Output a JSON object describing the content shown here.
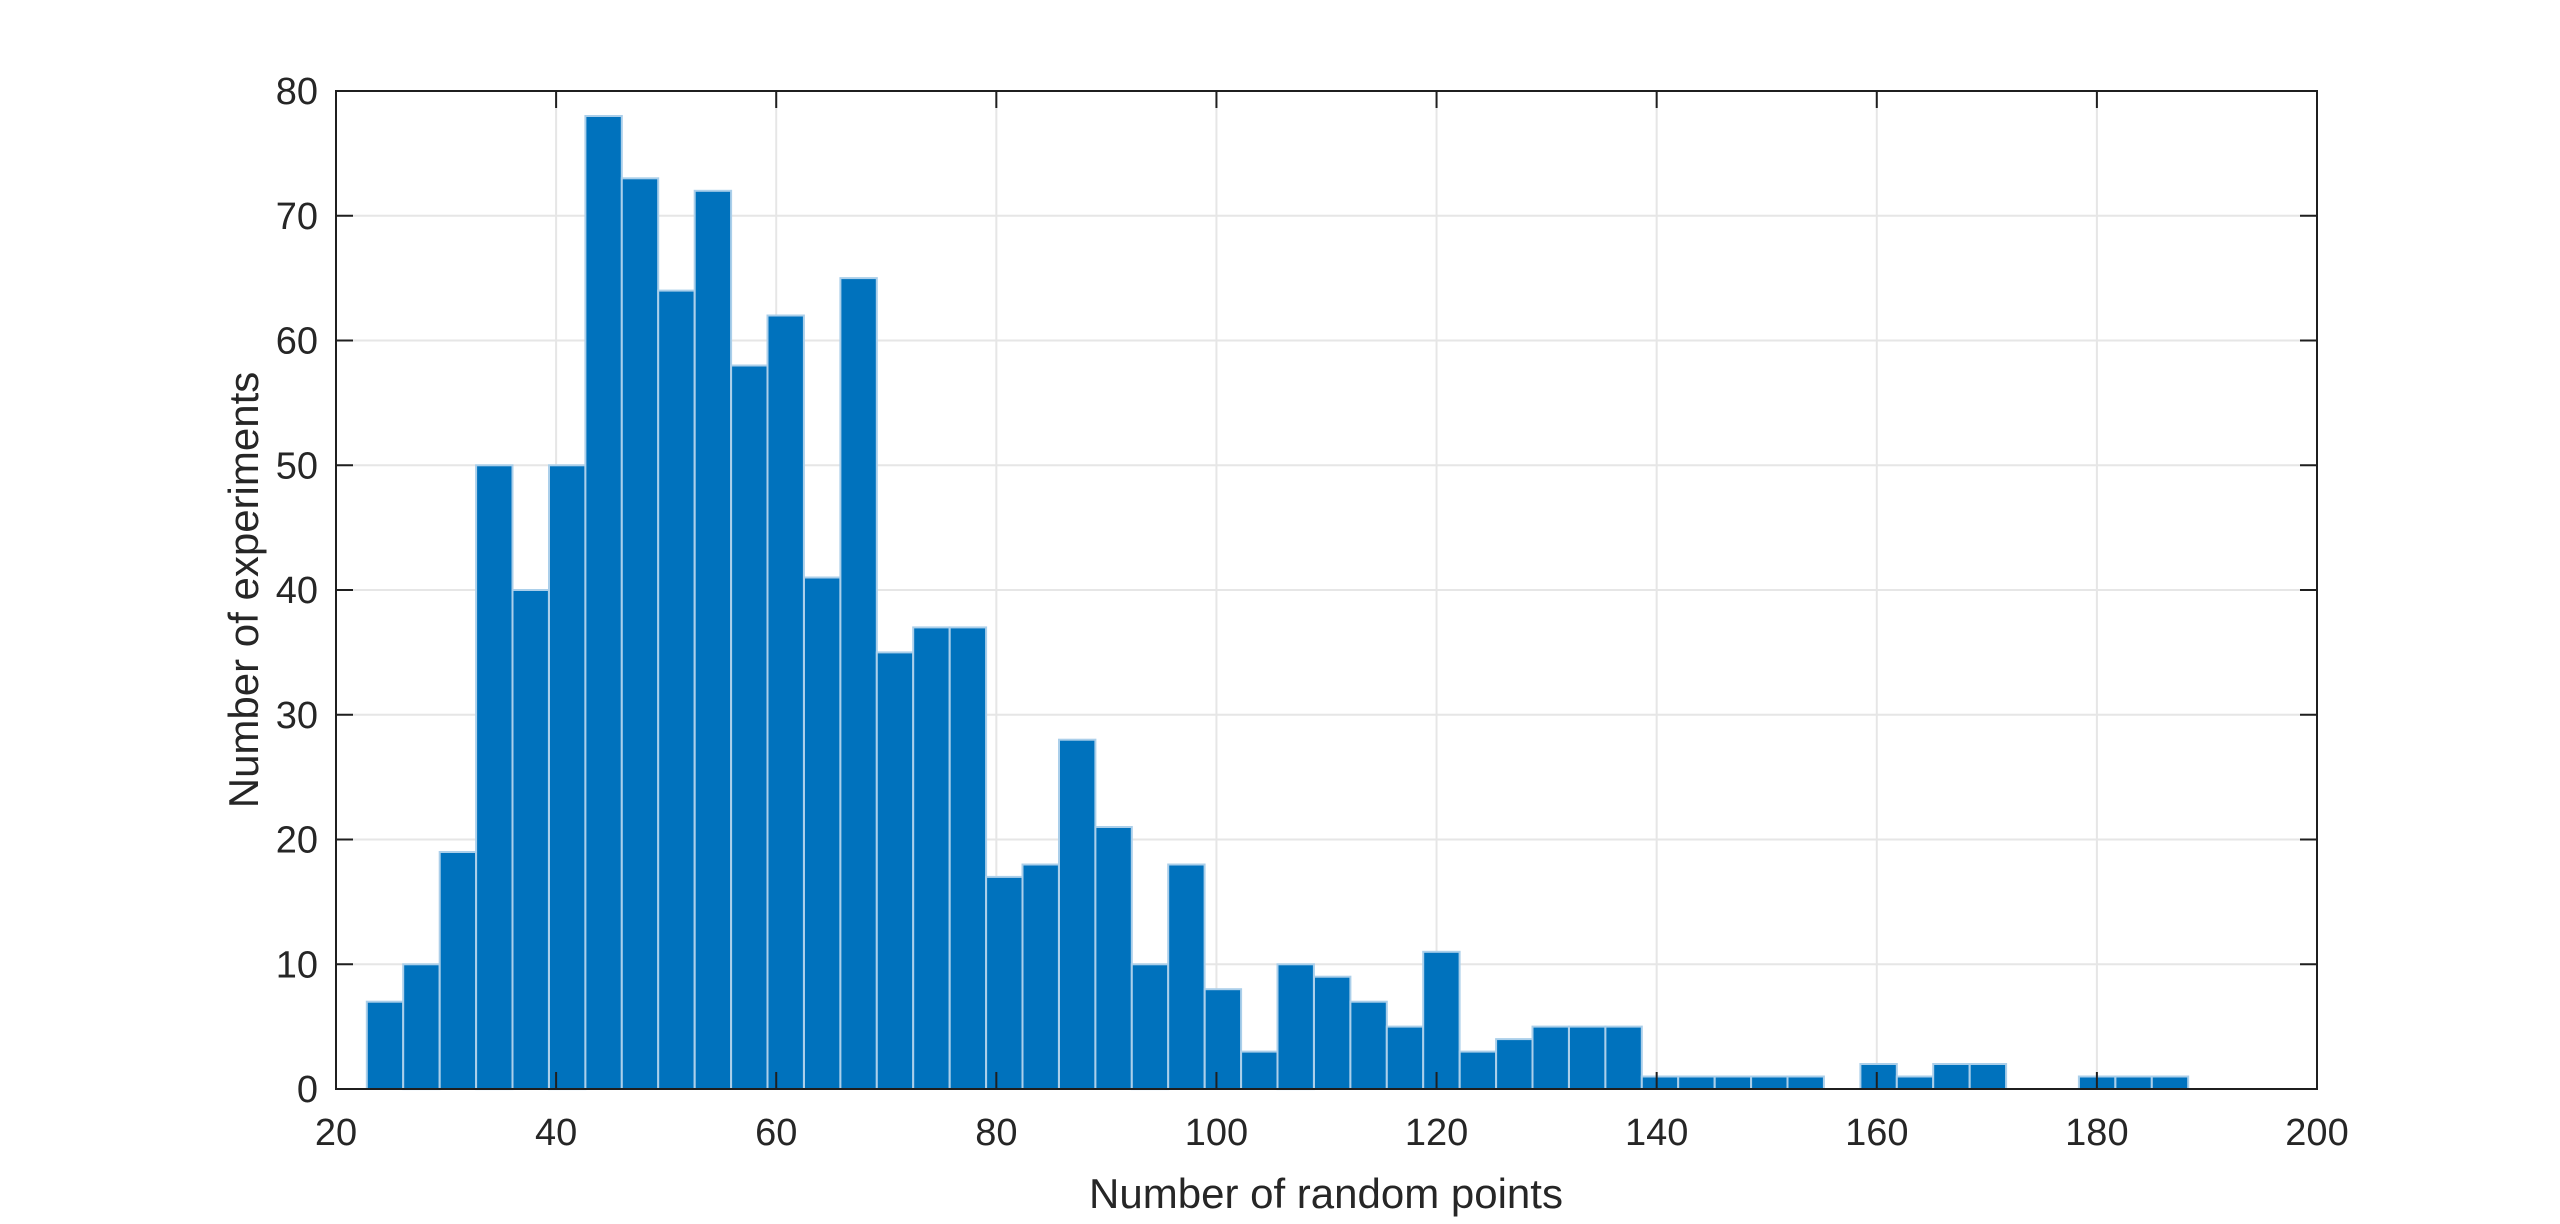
{
  "figure": {
    "background": "#ffffff"
  },
  "chart_data": {
    "type": "bar",
    "variant": "histogram",
    "title": "",
    "xlabel": "Number of random points",
    "ylabel": "Number of experiments",
    "xlim": [
      20,
      200
    ],
    "ylim": [
      0,
      80
    ],
    "x_ticks": [
      20,
      40,
      60,
      80,
      100,
      120,
      140,
      160,
      180,
      200
    ],
    "y_ticks": [
      0,
      10,
      20,
      30,
      40,
      50,
      60,
      70,
      80
    ],
    "grid": true,
    "legend": null,
    "bin_start": 22.8,
    "bin_width": 3.31,
    "counts": [
      7,
      10,
      19,
      50,
      40,
      50,
      78,
      73,
      64,
      72,
      58,
      62,
      41,
      65,
      35,
      37,
      37,
      17,
      18,
      28,
      21,
      10,
      18,
      8,
      3,
      10,
      9,
      7,
      5,
      11,
      3,
      4,
      5,
      5,
      5,
      1,
      1,
      1,
      1,
      1,
      0,
      2,
      1,
      2,
      2,
      0,
      0,
      1,
      1,
      1
    ],
    "total_experiments": 1000
  },
  "style": {
    "bar_color": "#0072bd",
    "bar_edge_color": "#abcfea",
    "axis_color": "#1f1f1f",
    "grid_color": "#e6e6e6",
    "text_color": "#262626"
  }
}
